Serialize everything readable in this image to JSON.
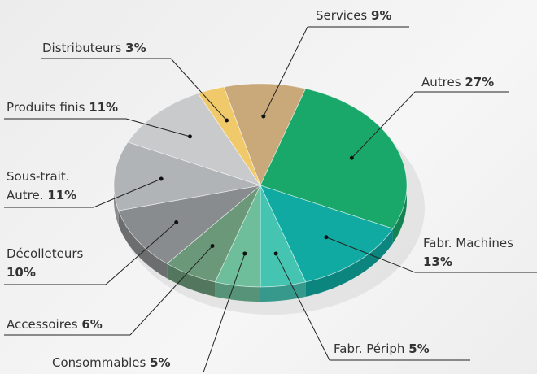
{
  "chart_data": {
    "type": "pie",
    "categories": [
      "Services",
      "Autres",
      "Fabr. Machines",
      "Fabr. Périph",
      "Consommables",
      "Accessoires",
      "Décolleteurs",
      "Sous-trait.\nAutre.",
      "Produits finis",
      "Distributeurs"
    ],
    "values": [
      9,
      27,
      13,
      5,
      5,
      6,
      10,
      11,
      11,
      3
    ],
    "value_labels": [
      "9%",
      "27%",
      "13%",
      "5%",
      "5%",
      "6%",
      "10%",
      "11%",
      "11%",
      "3%"
    ],
    "colors": [
      "#c9a87a",
      "#1aa86a",
      "#10aaa2",
      "#45c4b2",
      "#6ebd9b",
      "#6a9878",
      "#898c8e",
      "#b1b4b6",
      "#c8cacc",
      "#f0c96a"
    ]
  }
}
